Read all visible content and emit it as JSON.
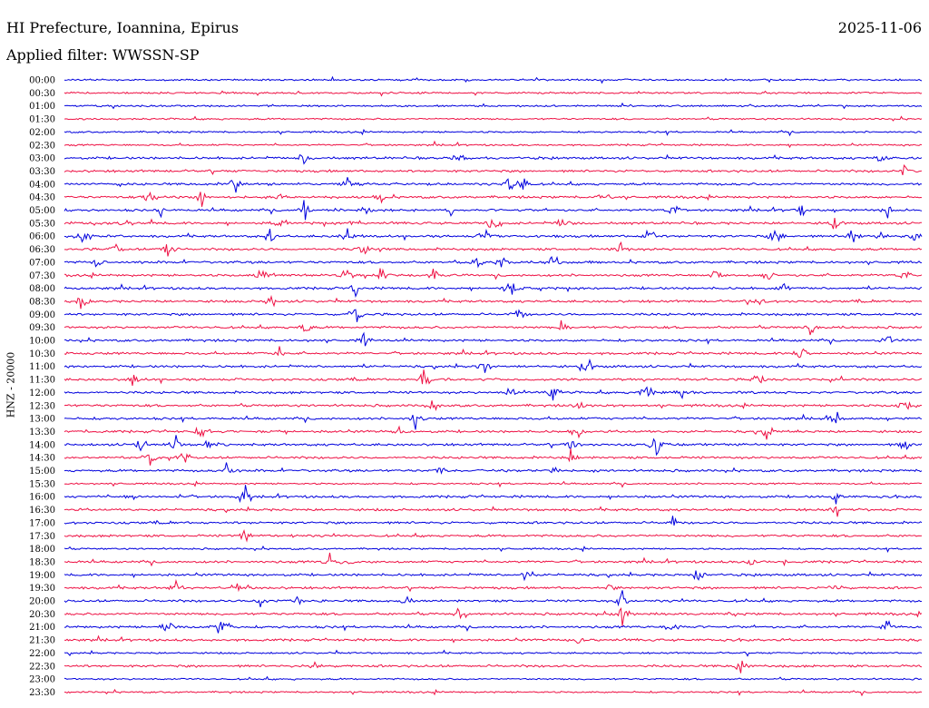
{
  "header": {
    "station": "HI Prefecture, Ioannina, Epirus",
    "date": "2025-11-06",
    "filter": "Applied filter: WWSSN-SP"
  },
  "channel_label": "HNZ - 20000",
  "colors": {
    "trace_a": "#0000dd",
    "trace_b": "#ee1144",
    "text": "#000000"
  },
  "chart_data": {
    "type": "line",
    "ylabel": "HNZ - 20000",
    "rows": [
      {
        "time": "00:00",
        "color": "blue",
        "events": []
      },
      {
        "time": "00:30",
        "color": "red",
        "events": []
      },
      {
        "time": "01:00",
        "color": "blue",
        "events": []
      },
      {
        "time": "01:30",
        "color": "red",
        "events": []
      },
      {
        "time": "02:00",
        "color": "blue",
        "events": []
      },
      {
        "time": "02:30",
        "color": "red",
        "events": []
      },
      {
        "time": "03:00",
        "color": "blue",
        "events": [
          [
            0.28,
            1.0
          ],
          [
            0.46,
            0.8
          ],
          [
            0.95,
            0.7
          ]
        ]
      },
      {
        "time": "03:30",
        "color": "red",
        "events": [
          [
            0.98,
            0.6
          ]
        ]
      },
      {
        "time": "04:00",
        "color": "blue",
        "events": [
          [
            0.2,
            0.9
          ],
          [
            0.33,
            0.6
          ],
          [
            0.52,
            1.4
          ],
          [
            0.535,
            1.0
          ]
        ]
      },
      {
        "time": "04:30",
        "color": "red",
        "events": [
          [
            0.1,
            1.2
          ],
          [
            0.16,
            1.0
          ],
          [
            0.25,
            0.7
          ],
          [
            0.37,
            0.7
          ],
          [
            0.63,
            1.2
          ]
        ]
      },
      {
        "time": "05:00",
        "color": "blue",
        "events": [
          [
            0.11,
            1.4
          ],
          [
            0.28,
            1.4
          ],
          [
            0.35,
            1.0
          ],
          [
            0.45,
            0.8
          ],
          [
            0.71,
            1.0
          ],
          [
            0.86,
            0.8
          ],
          [
            0.96,
            0.8
          ]
        ]
      },
      {
        "time": "05:30",
        "color": "red",
        "events": [
          [
            0.07,
            0.9
          ],
          [
            0.25,
            0.7
          ],
          [
            0.34,
            0.8
          ],
          [
            0.5,
            1.2
          ],
          [
            0.58,
            0.8
          ],
          [
            0.9,
            0.8
          ]
        ]
      },
      {
        "time": "06:00",
        "color": "blue",
        "events": [
          [
            0.02,
            1.4
          ],
          [
            0.24,
            1.0
          ],
          [
            0.33,
            0.9
          ],
          [
            0.49,
            1.2
          ],
          [
            0.68,
            1.2
          ],
          [
            0.83,
            1.4
          ],
          [
            0.92,
            1.0
          ],
          [
            0.95,
            0.9
          ],
          [
            0.99,
            1.2
          ]
        ]
      },
      {
        "time": "06:30",
        "color": "red",
        "events": [
          [
            0.06,
            0.8
          ],
          [
            0.12,
            1.4
          ],
          [
            0.35,
            0.7
          ],
          [
            0.65,
            0.7
          ]
        ]
      },
      {
        "time": "07:00",
        "color": "blue",
        "events": [
          [
            0.04,
            1.0
          ],
          [
            0.48,
            1.2
          ],
          [
            0.51,
            0.8
          ],
          [
            0.57,
            1.4
          ]
        ]
      },
      {
        "time": "07:30",
        "color": "red",
        "events": [
          [
            0.23,
            1.2
          ],
          [
            0.33,
            0.8
          ],
          [
            0.37,
            1.0
          ],
          [
            0.43,
            0.8
          ],
          [
            0.76,
            0.9
          ],
          [
            0.82,
            0.9
          ],
          [
            0.98,
            0.8
          ]
        ]
      },
      {
        "time": "08:00",
        "color": "blue",
        "events": [
          [
            0.34,
            1.0
          ],
          [
            0.52,
            1.4
          ],
          [
            0.84,
            0.7
          ]
        ]
      },
      {
        "time": "08:30",
        "color": "red",
        "events": [
          [
            0.02,
            1.4
          ],
          [
            0.24,
            0.9
          ],
          [
            0.81,
            0.8
          ]
        ]
      },
      {
        "time": "09:00",
        "color": "blue",
        "events": [
          [
            0.34,
            1.4
          ],
          [
            0.53,
            1.2
          ]
        ]
      },
      {
        "time": "09:30",
        "color": "red",
        "events": [
          [
            0.28,
            1.0
          ],
          [
            0.58,
            0.8
          ],
          [
            0.87,
            0.9
          ]
        ]
      },
      {
        "time": "10:00",
        "color": "blue",
        "events": [
          [
            0.35,
            1.2
          ],
          [
            0.96,
            0.8
          ]
        ]
      },
      {
        "time": "10:30",
        "color": "red",
        "events": [
          [
            0.25,
            1.0
          ],
          [
            0.86,
            1.2
          ]
        ]
      },
      {
        "time": "11:00",
        "color": "blue",
        "events": [
          [
            0.49,
            0.8
          ],
          [
            0.61,
            1.4
          ]
        ]
      },
      {
        "time": "11:30",
        "color": "red",
        "events": [
          [
            0.08,
            0.7
          ],
          [
            0.42,
            1.4
          ],
          [
            0.81,
            1.0
          ]
        ]
      },
      {
        "time": "12:00",
        "color": "blue",
        "events": [
          [
            0.52,
            0.8
          ],
          [
            0.57,
            1.4
          ],
          [
            0.68,
            1.2
          ],
          [
            0.72,
            0.8
          ]
        ]
      },
      {
        "time": "12:30",
        "color": "red",
        "events": [
          [
            0.43,
            0.9
          ],
          [
            0.6,
            0.8
          ],
          [
            0.98,
            1.2
          ]
        ]
      },
      {
        "time": "13:00",
        "color": "blue",
        "events": [
          [
            0.41,
            1.4
          ],
          [
            0.9,
            1.2
          ]
        ]
      },
      {
        "time": "13:30",
        "color": "red",
        "events": [
          [
            0.16,
            1.2
          ],
          [
            0.39,
            0.8
          ],
          [
            0.6,
            0.9
          ],
          [
            0.82,
            1.0
          ]
        ]
      },
      {
        "time": "14:00",
        "color": "blue",
        "events": [
          [
            0.09,
            1.0
          ],
          [
            0.13,
            1.2
          ],
          [
            0.17,
            1.0
          ],
          [
            0.59,
            0.8
          ],
          [
            0.69,
            1.4
          ],
          [
            0.98,
            1.2
          ]
        ]
      },
      {
        "time": "14:30",
        "color": "red",
        "events": [
          [
            0.1,
            1.0
          ],
          [
            0.14,
            0.8
          ],
          [
            0.59,
            1.2
          ]
        ]
      },
      {
        "time": "15:00",
        "color": "blue",
        "events": [
          [
            0.19,
            1.2
          ],
          [
            0.44,
            1.0
          ],
          [
            0.57,
            0.8
          ]
        ]
      },
      {
        "time": "15:30",
        "color": "red",
        "events": []
      },
      {
        "time": "16:00",
        "color": "blue",
        "events": [
          [
            0.08,
            1.0
          ],
          [
            0.21,
            1.4
          ],
          [
            0.9,
            1.2
          ]
        ]
      },
      {
        "time": "16:30",
        "color": "red",
        "events": [
          [
            0.9,
            1.0
          ]
        ]
      },
      {
        "time": "17:00",
        "color": "blue",
        "events": [
          [
            0.71,
            0.7
          ]
        ]
      },
      {
        "time": "17:30",
        "color": "red",
        "events": [
          [
            0.21,
            1.2
          ]
        ]
      },
      {
        "time": "18:00",
        "color": "blue",
        "events": []
      },
      {
        "time": "18:30",
        "color": "red",
        "events": [
          [
            0.31,
            1.2
          ],
          [
            0.33,
            0.9
          ],
          [
            0.8,
            1.0
          ]
        ]
      },
      {
        "time": "19:00",
        "color": "blue",
        "events": [
          [
            0.54,
            1.2
          ],
          [
            0.74,
            1.0
          ]
        ]
      },
      {
        "time": "19:30",
        "color": "red",
        "events": [
          [
            0.13,
            1.0
          ],
          [
            0.2,
            1.0
          ],
          [
            0.64,
            1.2
          ],
          [
            0.9,
            0.8
          ]
        ]
      },
      {
        "time": "20:00",
        "color": "blue",
        "events": [
          [
            0.23,
            0.8
          ],
          [
            0.27,
            0.7
          ],
          [
            0.4,
            1.0
          ],
          [
            0.65,
            1.4
          ]
        ]
      },
      {
        "time": "20:30",
        "color": "red",
        "events": [
          [
            0.46,
            0.9
          ],
          [
            0.65,
            1.4
          ]
        ]
      },
      {
        "time": "21:00",
        "color": "blue",
        "events": [
          [
            0.12,
            1.2
          ],
          [
            0.18,
            1.0
          ],
          [
            0.19,
            0.8
          ],
          [
            0.71,
            1.0
          ],
          [
            0.96,
            0.8
          ]
        ]
      },
      {
        "time": "21:30",
        "color": "red",
        "events": [
          [
            0.6,
            0.6
          ]
        ]
      },
      {
        "time": "22:00",
        "color": "blue",
        "events": []
      },
      {
        "time": "22:30",
        "color": "red",
        "events": [
          [
            0.29,
            0.8
          ],
          [
            0.79,
            1.2
          ]
        ]
      },
      {
        "time": "23:00",
        "color": "blue",
        "events": []
      },
      {
        "time": "23:30",
        "color": "red",
        "events": []
      }
    ]
  }
}
